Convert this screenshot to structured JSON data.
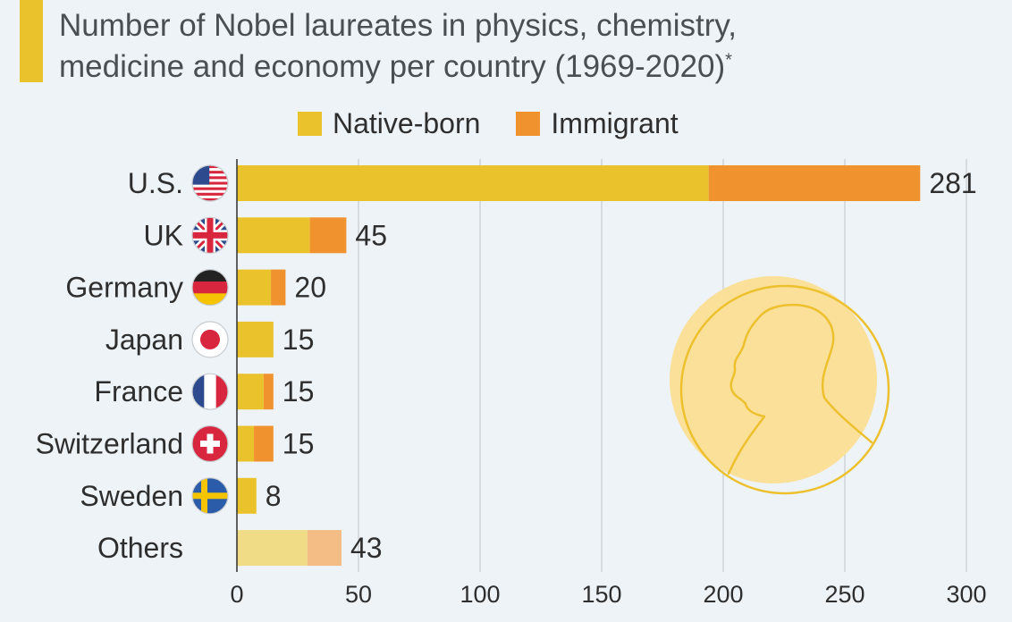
{
  "title": {
    "line1": "Number of Nobel laureates in physics, chemistry,",
    "line2": "medicine and economy per country (1969-2020)",
    "footnote_mark": "*"
  },
  "legend": [
    {
      "label": "Native-born",
      "color": "#eac32c"
    },
    {
      "label": "Immigrant",
      "color": "#f0932f"
    }
  ],
  "chart_data": {
    "type": "bar",
    "orientation": "horizontal",
    "stacked": true,
    "categories": [
      "U.S.",
      "UK",
      "Germany",
      "Japan",
      "France",
      "Switzerland",
      "Sweden",
      "Others"
    ],
    "flags": [
      "us-flag-icon",
      "uk-flag-icon",
      "germany-flag-icon",
      "japan-flag-icon",
      "france-flag-icon",
      "switzerland-flag-icon",
      "sweden-flag-icon",
      null
    ],
    "series": [
      {
        "name": "Native-born",
        "values": [
          194,
          30,
          14,
          15,
          11,
          7,
          8,
          29
        ],
        "color": "#eac32c"
      },
      {
        "name": "Immigrant",
        "values": [
          87,
          15,
          6,
          0,
          4,
          8,
          0,
          14
        ],
        "color": "#f0932f"
      }
    ],
    "totals": [
      281,
      45,
      20,
      15,
      15,
      15,
      8,
      43
    ],
    "xlim": [
      0,
      300
    ],
    "xticks": [
      0,
      50,
      100,
      150,
      200,
      250,
      300
    ],
    "grid": true,
    "legend_position": "top",
    "colors": {
      "native": "#eac32c",
      "immigrant": "#f0932f",
      "native_others": "#f0db86",
      "immigrant_others": "#f3bd85",
      "grid": "#cfd3d6",
      "medal": "#fbe09a",
      "medal_line": "#edc02e"
    }
  }
}
